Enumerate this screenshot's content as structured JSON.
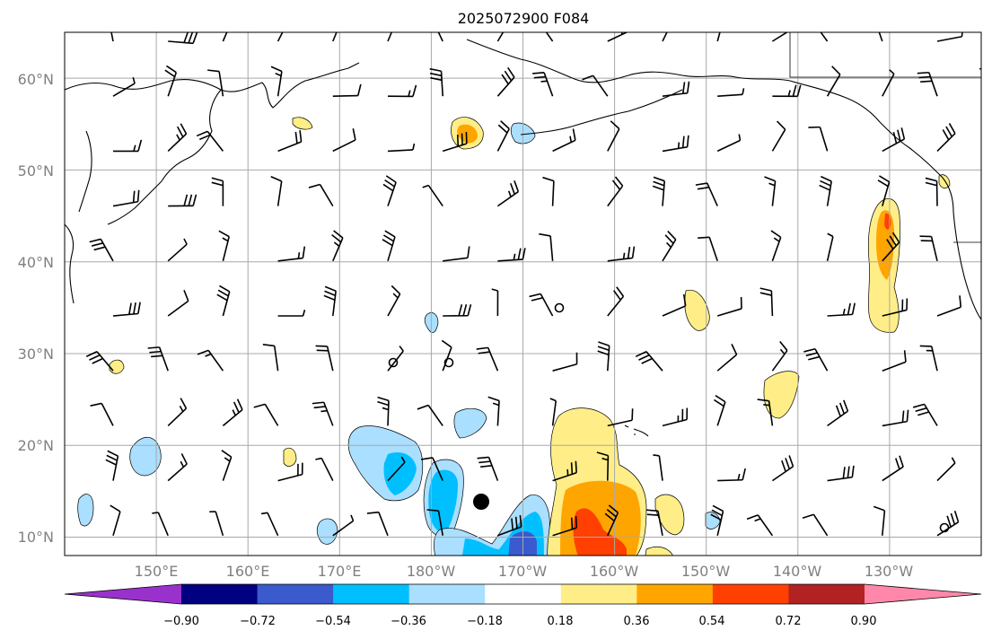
{
  "title": "2025072900 F084",
  "map": {
    "lat_range": [
      8,
      65
    ],
    "lon_range": [
      140,
      240
    ],
    "lat_labels": [
      "60°N",
      "50°N",
      "40°N",
      "30°N",
      "20°N",
      "10°N"
    ],
    "lat_values": [
      60,
      50,
      40,
      30,
      20,
      10
    ],
    "lon_labels": [
      "150°E",
      "160°E",
      "170°E",
      "180°W",
      "170°W",
      "160°W",
      "150°W",
      "140°W",
      "130°W"
    ],
    "lon_values": [
      150,
      160,
      170,
      180,
      190,
      200,
      210,
      220,
      230
    ],
    "gridlines": true,
    "coastlines": true,
    "wind_barbs": true,
    "storm_marker": {
      "lon": 186,
      "lat": 14
    }
  },
  "colorbar": {
    "orientation": "horizontal",
    "extend": "both",
    "ticks": [
      "−0.90",
      "−0.72",
      "−0.54",
      "−0.36",
      "−0.18",
      "0.18",
      "0.36",
      "0.54",
      "0.72",
      "0.90"
    ],
    "colors": [
      "#9932cc",
      "#000080",
      "#3a5acd",
      "#00bfff",
      "#aadfff",
      "#ffffff",
      "#ffee88",
      "#ffa500",
      "#ff4000",
      "#b22222",
      "#ff88aa"
    ]
  }
}
